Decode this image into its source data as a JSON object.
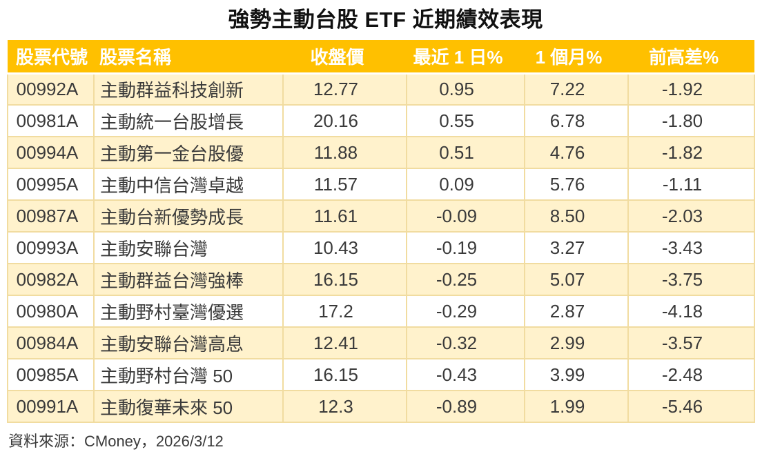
{
  "title": "強勢主動台股 ETF 近期績效表現",
  "source_note": "資料來源：CMoney，2026/3/12",
  "colors": {
    "header_bg": "#FFC000",
    "row_alt_bg": "#FFF2CC",
    "row_bg": "#FFFFFF",
    "cell_border": "#F1DCA0",
    "header_text": "#FFFFFF",
    "body_text": "#3A3A3A"
  },
  "chart_data": {
    "type": "table",
    "title": "強勢主動台股 ETF 近期績效表現",
    "source": "資料來源：CMoney，2026/3/12",
    "columns": [
      "股票代號",
      "股票名稱",
      "收盤價",
      "最近 1 日%",
      "1 個月%",
      "前高差%"
    ],
    "rows": [
      [
        "00992A",
        "主動群益科技創新",
        "12.77",
        "0.95",
        "7.22",
        "-1.92"
      ],
      [
        "00981A",
        "主動統一台股增長",
        "20.16",
        "0.55",
        "6.78",
        "-1.80"
      ],
      [
        "00994A",
        "主動第一金台股優",
        "11.88",
        "0.51",
        "4.76",
        "-1.82"
      ],
      [
        "00995A",
        "主動中信台灣卓越",
        "11.57",
        "0.09",
        "5.76",
        "-1.11"
      ],
      [
        "00987A",
        "主動台新優勢成長",
        "11.61",
        "-0.09",
        "8.50",
        "-2.03"
      ],
      [
        "00993A",
        "主動安聯台灣",
        "10.43",
        "-0.19",
        "3.27",
        "-3.43"
      ],
      [
        "00982A",
        "主動群益台灣強棒",
        "16.15",
        "-0.25",
        "5.07",
        "-3.75"
      ],
      [
        "00980A",
        "主動野村臺灣優選",
        "17.2",
        "-0.29",
        "2.87",
        "-4.18"
      ],
      [
        "00984A",
        "主動安聯台灣高息",
        "12.41",
        "-0.32",
        "2.99",
        "-3.57"
      ],
      [
        "00985A",
        "主動野村台灣 50",
        "16.15",
        "-0.43",
        "3.99",
        "-2.48"
      ],
      [
        "00991A",
        "主動復華未來 50",
        "12.3",
        "-0.89",
        "1.99",
        "-5.46"
      ]
    ]
  }
}
